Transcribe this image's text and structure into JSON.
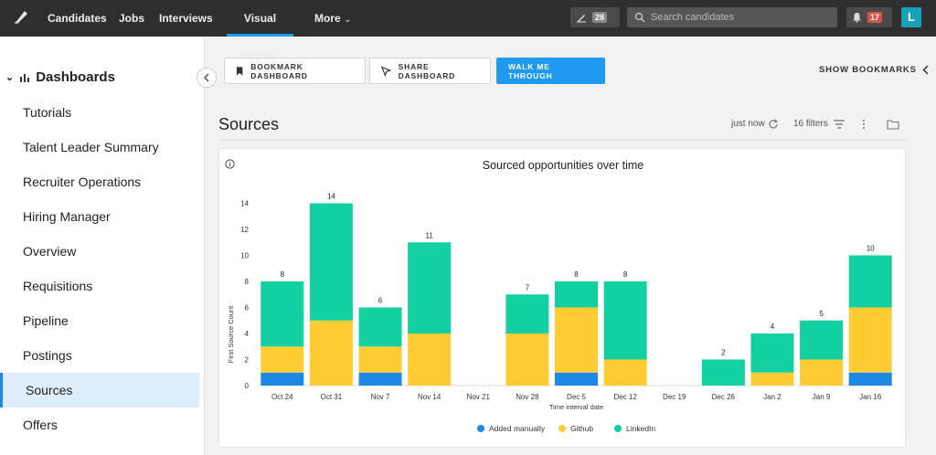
{
  "nav": {
    "items": [
      {
        "label": "Candidates",
        "name": "nav-candidates"
      },
      {
        "label": "Jobs",
        "name": "nav-jobs"
      },
      {
        "label": "Interviews",
        "name": "nav-interviews"
      },
      {
        "label": "Visual Insights",
        "name": "nav-visual-insights",
        "active": true
      },
      {
        "label": "More",
        "name": "nav-more"
      }
    ],
    "edit_count": "28",
    "search_placeholder": "Search candidates",
    "notification_count": "17",
    "avatar_initial": "L"
  },
  "sidebar": {
    "heading": "Dashboards",
    "items": [
      {
        "label": "Tutorials"
      },
      {
        "label": "Talent Leader Summary"
      },
      {
        "label": "Recruiter Operations"
      },
      {
        "label": "Hiring Manager"
      },
      {
        "label": "Overview"
      },
      {
        "label": "Requisitions"
      },
      {
        "label": "Pipeline"
      },
      {
        "label": "Postings"
      },
      {
        "label": "Sources",
        "active": true
      },
      {
        "label": "Offers"
      }
    ]
  },
  "toolbar": {
    "bookmark_label": "BOOKMARK DASHBOARD",
    "share_label": "SHARE DASHBOARD",
    "walk_label": "WALK ME THROUGH",
    "show_bookmarks_label": "SHOW BOOKMARKS"
  },
  "page": {
    "title": "Sources",
    "updated": "just now",
    "filters": "16 filters"
  },
  "colors": {
    "added_manually": "#1e88e5",
    "github": "#ffcc33",
    "linkedin": "#12d0a0",
    "accent": "#1e9bf0"
  },
  "chart_data": {
    "type": "bar",
    "stacked": true,
    "title": "Sourced opportunities over time",
    "xlabel": "Time interval date",
    "ylabel": "First Source Count",
    "ylim": [
      0,
      15
    ],
    "yticks": [
      0,
      2,
      4,
      6,
      8,
      10,
      12,
      14
    ],
    "categories": [
      "Oct 24",
      "Oct 31",
      "Nov 7",
      "Nov 14",
      "Nov 21",
      "Nov 28",
      "Dec 5",
      "Dec 12",
      "Dec 19",
      "Dec 26",
      "Jan 2",
      "Jan 9",
      "Jan 16"
    ],
    "series": [
      {
        "name": "Added manually",
        "color": "#1e88e5",
        "values": [
          1,
          0,
          1,
          0,
          0,
          0,
          1,
          0,
          0,
          0,
          0,
          0,
          1
        ]
      },
      {
        "name": "Github",
        "color": "#ffcc33",
        "values": [
          2,
          5,
          2,
          4,
          0,
          4,
          5,
          2,
          0,
          0,
          1,
          2,
          5
        ]
      },
      {
        "name": "LinkedIn",
        "color": "#12d0a0",
        "values": [
          5,
          9,
          3,
          7,
          0,
          3,
          2,
          6,
          0,
          2,
          3,
          3,
          4
        ]
      }
    ],
    "totals": [
      "8",
      "14",
      "6",
      "11",
      "",
      "7",
      "8",
      "8",
      "",
      "2",
      "4",
      "5",
      "10"
    ],
    "legend_position": "bottom"
  }
}
